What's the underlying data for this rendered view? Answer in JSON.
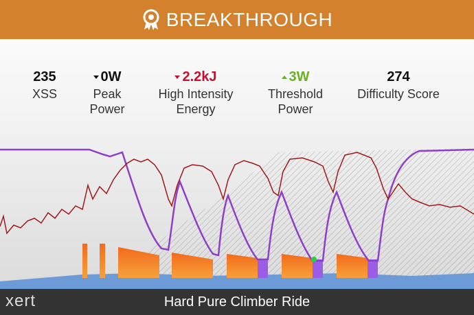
{
  "header": {
    "title": "BREAKTHROUGH"
  },
  "metrics": [
    {
      "value": "235",
      "label": "XSS"
    },
    {
      "value": "0W",
      "label": "Peak Power"
    },
    {
      "value": "2.2kJ",
      "label": "High Intensity Energy"
    },
    {
      "value": "3W",
      "label": "Threshold Power"
    },
    {
      "value": "274",
      "label": "Difficulty Score"
    }
  ],
  "footer": {
    "logo": "xert",
    "title": "Hard Pure Climber Ride"
  }
}
